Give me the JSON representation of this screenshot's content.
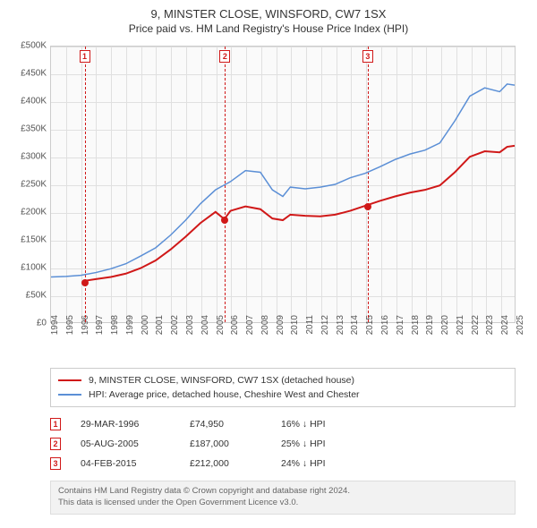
{
  "title": "9, MINSTER CLOSE, WINSFORD, CW7 1SX",
  "subtitle": "Price paid vs. HM Land Registry's House Price Index (HPI)",
  "chart": {
    "type": "line",
    "background_color": "#fafafa",
    "grid_color": "#e0e0e0",
    "border_color": "#cccccc",
    "y": {
      "min": 0,
      "max": 500000,
      "step": 50000,
      "currency": "£",
      "suffix": "K",
      "ticks": [
        "£0",
        "£50K",
        "£100K",
        "£150K",
        "£200K",
        "£250K",
        "£300K",
        "£350K",
        "£400K",
        "£450K",
        "£500K"
      ]
    },
    "x": {
      "min": 1994,
      "max": 2025,
      "step": 1,
      "ticks": [
        "1994",
        "1995",
        "1996",
        "1997",
        "1998",
        "1999",
        "2000",
        "2001",
        "2002",
        "2003",
        "2004",
        "2005",
        "2006",
        "2007",
        "2008",
        "2009",
        "2010",
        "2011",
        "2012",
        "2013",
        "2014",
        "2015",
        "2016",
        "2017",
        "2018",
        "2019",
        "2020",
        "2021",
        "2022",
        "2023",
        "2024",
        "2025"
      ]
    },
    "series": [
      {
        "name": "property",
        "label": "9, MINSTER CLOSE, WINSFORD, CW7 1SX (detached house)",
        "color": "#d01818",
        "width": 2,
        "points": [
          [
            1996.24,
            74950
          ],
          [
            1997,
            78000
          ],
          [
            1998,
            82000
          ],
          [
            1999,
            88000
          ],
          [
            2000,
            98000
          ],
          [
            2001,
            112000
          ],
          [
            2002,
            132000
          ],
          [
            2003,
            155000
          ],
          [
            2004,
            180000
          ],
          [
            2005,
            200000
          ],
          [
            2005.59,
            187000
          ],
          [
            2006,
            202000
          ],
          [
            2007,
            210000
          ],
          [
            2008,
            205000
          ],
          [
            2008.8,
            188000
          ],
          [
            2009.5,
            185000
          ],
          [
            2010,
            195000
          ],
          [
            2011,
            193000
          ],
          [
            2012,
            192000
          ],
          [
            2013,
            195000
          ],
          [
            2014,
            202000
          ],
          [
            2015.1,
            212000
          ],
          [
            2016,
            220000
          ],
          [
            2017,
            228000
          ],
          [
            2018,
            235000
          ],
          [
            2019,
            240000
          ],
          [
            2020,
            248000
          ],
          [
            2021,
            272000
          ],
          [
            2022,
            300000
          ],
          [
            2023,
            310000
          ],
          [
            2024,
            308000
          ],
          [
            2024.5,
            318000
          ],
          [
            2025,
            320000
          ]
        ]
      },
      {
        "name": "hpi",
        "label": "HPI: Average price, detached house, Cheshire West and Chester",
        "color": "#5b8fd6",
        "width": 1.5,
        "points": [
          [
            1994,
            82000
          ],
          [
            1995,
            83000
          ],
          [
            1996,
            85000
          ],
          [
            1997,
            90000
          ],
          [
            1998,
            97000
          ],
          [
            1999,
            106000
          ],
          [
            2000,
            120000
          ],
          [
            2001,
            135000
          ],
          [
            2002,
            158000
          ],
          [
            2003,
            185000
          ],
          [
            2004,
            215000
          ],
          [
            2005,
            240000
          ],
          [
            2006,
            255000
          ],
          [
            2007,
            275000
          ],
          [
            2008,
            272000
          ],
          [
            2008.8,
            240000
          ],
          [
            2009.5,
            228000
          ],
          [
            2010,
            245000
          ],
          [
            2011,
            242000
          ],
          [
            2012,
            245000
          ],
          [
            2013,
            250000
          ],
          [
            2014,
            262000
          ],
          [
            2015,
            270000
          ],
          [
            2016,
            282000
          ],
          [
            2017,
            295000
          ],
          [
            2018,
            305000
          ],
          [
            2019,
            312000
          ],
          [
            2020,
            325000
          ],
          [
            2021,
            365000
          ],
          [
            2022,
            410000
          ],
          [
            2023,
            425000
          ],
          [
            2024,
            418000
          ],
          [
            2024.5,
            432000
          ],
          [
            2025,
            430000
          ]
        ]
      }
    ],
    "markers": [
      {
        "n": "1",
        "year": 1996.24,
        "value": 74950
      },
      {
        "n": "2",
        "year": 2005.59,
        "value": 187000
      },
      {
        "n": "3",
        "year": 2015.1,
        "value": 212000
      }
    ]
  },
  "legend": {
    "rows": [
      {
        "color": "#d01818",
        "label": "9, MINSTER CLOSE, WINSFORD, CW7 1SX (detached house)"
      },
      {
        "color": "#5b8fd6",
        "label": "HPI: Average price, detached house, Cheshire West and Chester"
      }
    ]
  },
  "events": [
    {
      "n": "1",
      "date": "29-MAR-1996",
      "price": "£74,950",
      "delta": "16% ↓ HPI"
    },
    {
      "n": "2",
      "date": "05-AUG-2005",
      "price": "£187,000",
      "delta": "25% ↓ HPI"
    },
    {
      "n": "3",
      "date": "04-FEB-2015",
      "price": "£212,000",
      "delta": "24% ↓ HPI"
    }
  ],
  "footer": {
    "line1": "Contains HM Land Registry data © Crown copyright and database right 2024.",
    "line2": "This data is licensed under the Open Government Licence v3.0."
  }
}
